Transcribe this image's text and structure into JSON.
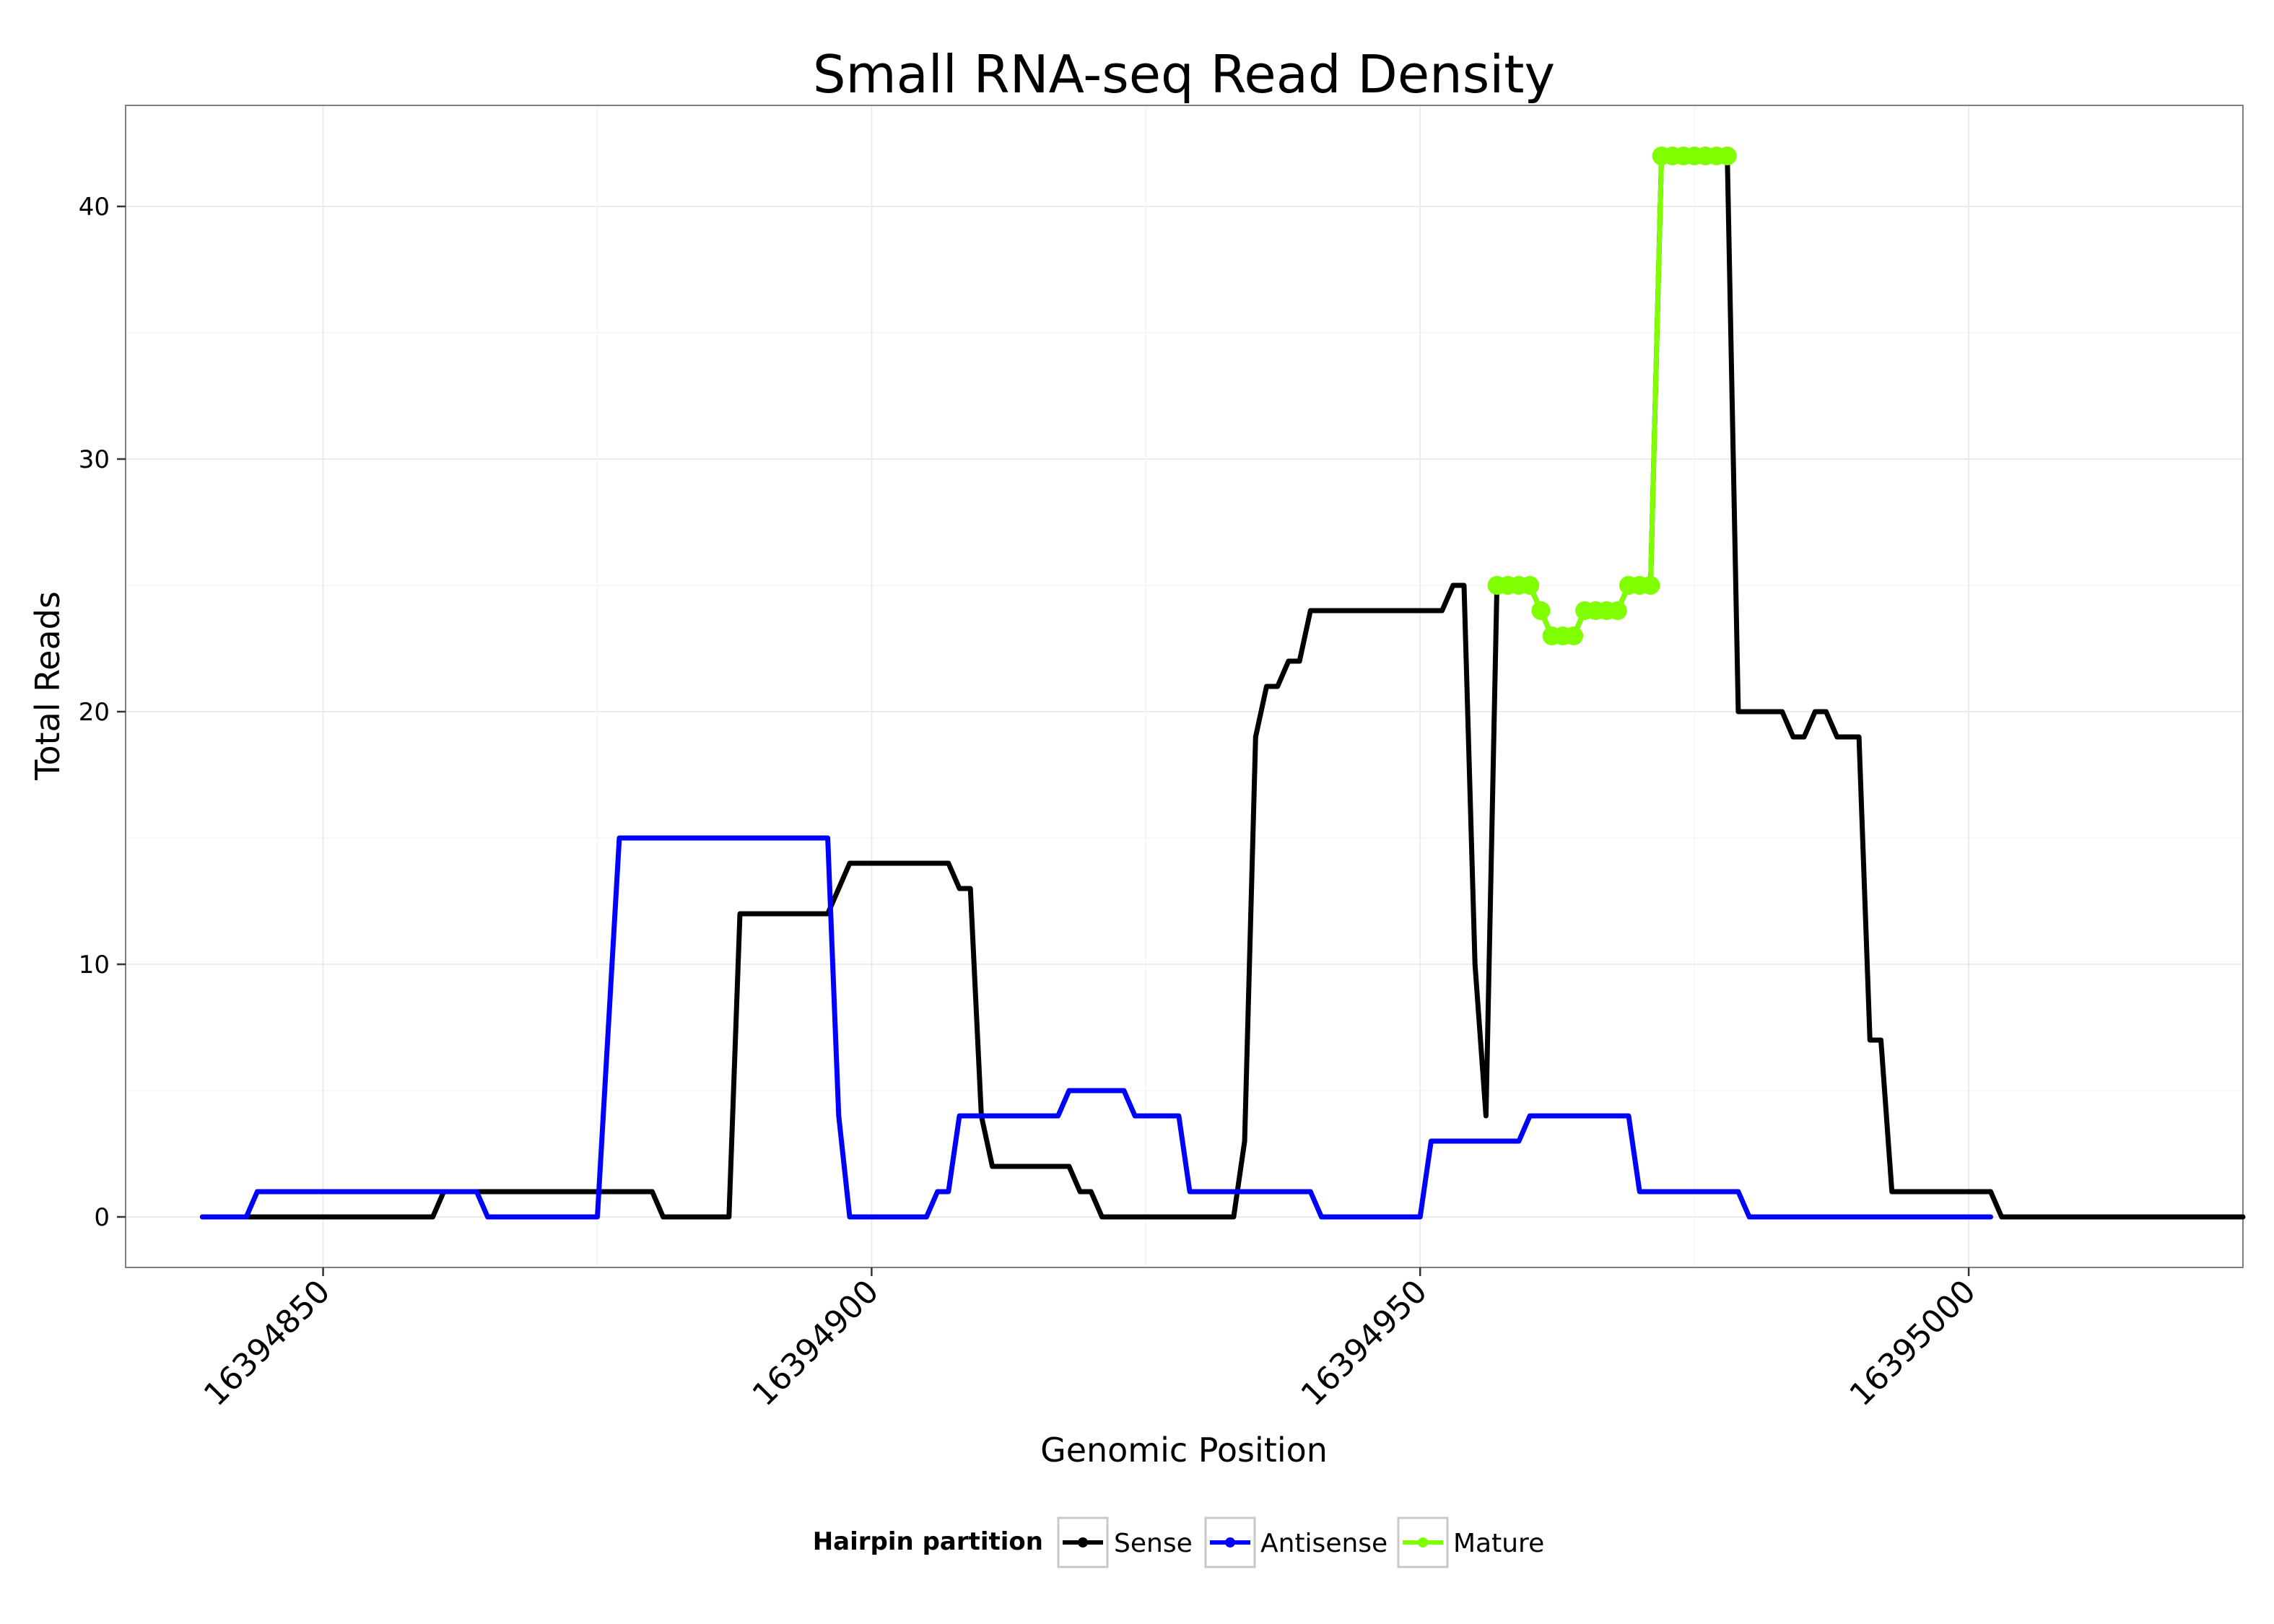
{
  "chart_data": {
    "type": "line",
    "title": "Small RNA-seq Read Density",
    "xlabel": "Genomic Position",
    "ylabel": "Total Reads",
    "xlim": [
      16394832,
      16395025
    ],
    "ylim": [
      -2,
      44
    ],
    "x_ticks": [
      16394850,
      16394900,
      16394950,
      16395000
    ],
    "x_tick_labels": [
      "16394850",
      "16394900",
      "16394950",
      "16395000"
    ],
    "y_ticks": [
      0,
      10,
      20,
      30,
      40
    ],
    "y_tick_labels": [
      "0",
      "10",
      "20",
      "30",
      "40"
    ],
    "grid": true,
    "legend": {
      "title": "Hairpin partition",
      "placement": "bottom",
      "entries": [
        "Sense",
        "Antisense",
        "Mature"
      ]
    },
    "series": [
      {
        "name": "Sense",
        "color": "#000000",
        "points": [
          [
            16394839,
            0
          ],
          [
            16394860,
            0
          ],
          [
            16394861,
            1
          ],
          [
            16394880,
            1
          ],
          [
            16394881,
            0
          ],
          [
            16394887,
            0
          ],
          [
            16394888,
            12
          ],
          [
            16394896,
            12
          ],
          [
            16394898,
            14
          ],
          [
            16394907,
            14
          ],
          [
            16394908,
            13
          ],
          [
            16394909,
            13
          ],
          [
            16394910,
            4
          ],
          [
            16394911,
            2
          ],
          [
            16394918,
            2
          ],
          [
            16394919,
            1
          ],
          [
            16394920,
            1
          ],
          [
            16394921,
            0
          ],
          [
            16394933,
            0
          ],
          [
            16394934,
            3
          ],
          [
            16394935,
            19
          ],
          [
            16394936,
            21
          ],
          [
            16394937,
            21
          ],
          [
            16394938,
            22
          ],
          [
            16394939,
            22
          ],
          [
            16394940,
            24
          ],
          [
            16394952,
            24
          ],
          [
            16394953,
            25
          ],
          [
            16394954,
            25
          ],
          [
            16394955,
            10
          ],
          [
            16394956,
            4
          ],
          [
            16394957,
            25
          ],
          [
            16394960,
            25
          ],
          [
            16394961,
            24
          ],
          [
            16394962,
            23
          ],
          [
            16394964,
            23
          ],
          [
            16394965,
            24
          ],
          [
            16394968,
            24
          ],
          [
            16394969,
            25
          ],
          [
            16394971,
            25
          ],
          [
            16394972,
            42
          ],
          [
            16394978,
            42
          ],
          [
            16394979,
            20
          ],
          [
            16394983,
            20
          ],
          [
            16394984,
            19
          ],
          [
            16394985,
            19
          ],
          [
            16394986,
            20
          ],
          [
            16394987,
            20
          ],
          [
            16394988,
            19
          ],
          [
            16394990,
            19
          ],
          [
            16394991,
            7
          ],
          [
            16394992,
            7
          ],
          [
            16394993,
            1
          ],
          [
            16395002,
            1
          ],
          [
            16395003,
            0
          ],
          [
            16395025,
            0
          ]
        ]
      },
      {
        "name": "Antisense",
        "color": "#0000ff",
        "points": [
          [
            16394839,
            0
          ],
          [
            16394843,
            0
          ],
          [
            16394844,
            1
          ],
          [
            16394864,
            1
          ],
          [
            16394865,
            0
          ],
          [
            16394875,
            0
          ],
          [
            16394877,
            15
          ],
          [
            16394896,
            15
          ],
          [
            16394897,
            4
          ],
          [
            16394898,
            0
          ],
          [
            16394905,
            0
          ],
          [
            16394906,
            1
          ],
          [
            16394907,
            1
          ],
          [
            16394908,
            4
          ],
          [
            16394917,
            4
          ],
          [
            16394918,
            5
          ],
          [
            16394923,
            5
          ],
          [
            16394924,
            4
          ],
          [
            16394928,
            4
          ],
          [
            16394929,
            1
          ],
          [
            16394940,
            1
          ],
          [
            16394941,
            0
          ],
          [
            16394945,
            0
          ],
          [
            16394950,
            0
          ],
          [
            16394951,
            3
          ],
          [
            16394959,
            3
          ],
          [
            16394960,
            4
          ],
          [
            16394969,
            4
          ],
          [
            16394970,
            1
          ],
          [
            16394979,
            1
          ],
          [
            16394980,
            0
          ],
          [
            16395002,
            0
          ]
        ]
      },
      {
        "name": "Mature",
        "color": "#7fff00",
        "points": [
          [
            16394957,
            25
          ],
          [
            16394958,
            25
          ],
          [
            16394959,
            25
          ],
          [
            16394960,
            25
          ],
          [
            16394961,
            24
          ],
          [
            16394962,
            23
          ],
          [
            16394963,
            23
          ],
          [
            16394964,
            23
          ],
          [
            16394965,
            24
          ],
          [
            16394966,
            24
          ],
          [
            16394967,
            24
          ],
          [
            16394968,
            24
          ],
          [
            16394969,
            25
          ],
          [
            16394970,
            25
          ],
          [
            16394971,
            25
          ],
          [
            16394972,
            42
          ],
          [
            16394973,
            42
          ],
          [
            16394974,
            42
          ],
          [
            16394975,
            42
          ],
          [
            16394976,
            42
          ],
          [
            16394977,
            42
          ],
          [
            16394978,
            42
          ]
        ]
      }
    ]
  }
}
